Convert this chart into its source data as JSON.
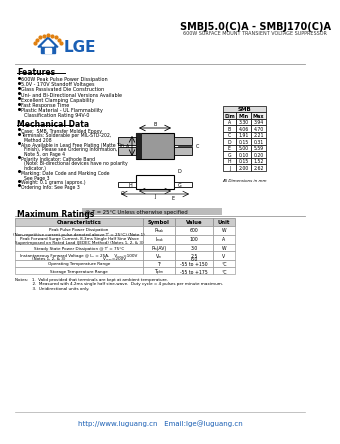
{
  "title_part": "SMBJ5.0(C)A - SMBJ170(C)A",
  "subtitle": "600W SURFACE MOUNT TRANSIENT VOLTAGE SUPPRESSOR",
  "features_title": "Features",
  "features": [
    "600W Peak Pulse Power Dissipation",
    "5.0V - 170V Standoff Voltages",
    "Glass Passivated Die Construction",
    "Uni- and Bi-Directional Versions Available",
    "Excellent Clamping Capability",
    "Fast Response Time",
    "Plastic Material - UL Flammability",
    "Classification Rating 94V-0"
  ],
  "mech_title": "Mechanical Data",
  "mech_items": [
    "Case:  SMB, Transfer Molded Epoxy",
    "Terminals: Solderable per MIL-STD-202,",
    "Method 208",
    "Also Available in Lead Free Plating (Matte Tin",
    "Finish), Please see Ordering Information,",
    "Note 5, on Page 4",
    "Polarity Indicator: Cathode Band",
    "(Note: Bi-directional devices have no polarity",
    "indicator.)",
    "Marking: Date Code and Marking Code",
    "See Page 3",
    "Weight: 0.1 grams (approx.)",
    "Ordering Info: See Page 3"
  ],
  "max_ratings_title": "Maximum Ratings",
  "max_ratings_subtitle": "@ T = 25°C Unless otherwise specified",
  "table_headers": [
    "Characteristics",
    "Symbol",
    "Value",
    "Unit"
  ],
  "table_rows": [
    [
      "Peak Pulse Power Dissipation\n(Non-repetitive current pulse denoted above Tⁱ = 25°C) (Note 1)",
      "Pₘₐₖ",
      "600",
      "W"
    ],
    [
      "Peak Forward Surge Current, 8.3ms Single Half Sine Wave\nSuperimposed on Rated Load (JEDEC Method) (Notes 1, 2, & 3)",
      "Iₘₐₖ",
      "100",
      "A"
    ],
    [
      "Steady State Power Dissipation @ Tⁱ = 75°C",
      "Pₘ(AV)",
      "3.0",
      "W"
    ],
    [
      "Instantaneous Forward Voltage @ Iₘ = 25A,    Vₘₐₖ=100V\n(Notes 1, 2, & 3)                              Vₘₐₖ=200V",
      "Vₘ",
      "2.5\n6.0",
      "V"
    ],
    [
      "Operating Temperature Range",
      "Tⁱ",
      "-55 to +150",
      "°C"
    ],
    [
      "Storage Temperature Range",
      "Tₚₜₘ",
      "-55 to +175",
      "°C"
    ]
  ],
  "notes": [
    "Notes:   1.  Valid provided that terminals are kept at ambient temperature.",
    "              2.  Measured with 4.2ms single half sine-wave.  Duty cycle = 4 pulses per minute maximum.",
    "              3.  Unidirectional units only."
  ],
  "footer": "http://www.luguang.cn   Email:lge@luguang.cn",
  "smb_table_title": "SMB",
  "smb_dims": {
    "headers": [
      "Dim",
      "Min",
      "Max"
    ],
    "rows": [
      [
        "A",
        "3.30",
        "3.94"
      ],
      [
        "B",
        "4.06",
        "4.70"
      ],
      [
        "C",
        "1.91",
        "2.21"
      ],
      [
        "D",
        "0.15",
        "0.31"
      ],
      [
        "E",
        "5.00",
        "5.59"
      ],
      [
        "G",
        "0.10",
        "0.20"
      ],
      [
        "H",
        "0.15",
        "1.52"
      ],
      [
        "J",
        "2.00",
        "2.62"
      ]
    ],
    "note": "All Dimensions in mm"
  },
  "bg_color": "#ffffff",
  "text_color": "#000000",
  "logo_blue": "#1a5fb4",
  "logo_orange": "#e08010"
}
